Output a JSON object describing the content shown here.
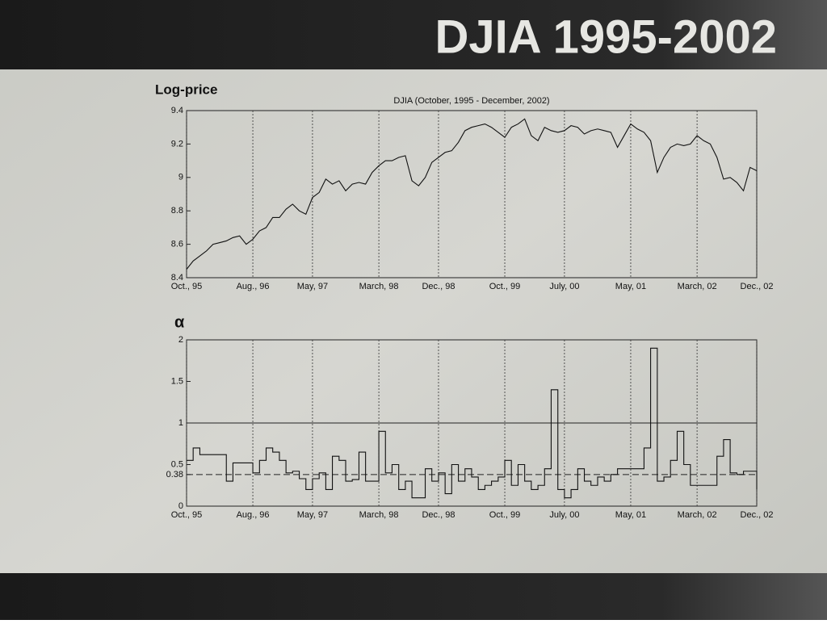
{
  "slide": {
    "title": "DJIA 1995-2002"
  },
  "chart_data": [
    {
      "type": "line",
      "title": "DJIA (October, 1995 - December, 2002)",
      "ylabel": "Log-price",
      "color": "#111111",
      "step": false,
      "xgrid": "dotted",
      "x": [
        1995.75,
        1995.833,
        1995.917,
        1996,
        1996.083,
        1996.167,
        1996.25,
        1996.333,
        1996.417,
        1996.5,
        1996.583,
        1996.667,
        1996.75,
        1996.833,
        1996.917,
        1997,
        1997.083,
        1997.167,
        1997.25,
        1997.333,
        1997.417,
        1997.5,
        1997.583,
        1997.667,
        1997.75,
        1997.833,
        1997.917,
        1998,
        1998.083,
        1998.167,
        1998.25,
        1998.333,
        1998.417,
        1998.5,
        1998.583,
        1998.667,
        1998.75,
        1998.833,
        1998.917,
        1999,
        1999.083,
        1999.167,
        1999.25,
        1999.333,
        1999.417,
        1999.5,
        1999.583,
        1999.667,
        1999.75,
        1999.833,
        1999.917,
        2000,
        2000.083,
        2000.167,
        2000.25,
        2000.333,
        2000.417,
        2000.5,
        2000.583,
        2000.667,
        2000.75,
        2000.833,
        2000.917,
        2001,
        2001.083,
        2001.167,
        2001.25,
        2001.333,
        2001.417,
        2001.5,
        2001.583,
        2001.667,
        2001.75,
        2001.833,
        2001.917,
        2002,
        2002.083,
        2002.167,
        2002.25,
        2002.333,
        2002.417,
        2002.5,
        2002.583,
        2002.667,
        2002.75,
        2002.833,
        2002.917
      ],
      "values": [
        8.45,
        8.5,
        8.53,
        8.56,
        8.6,
        8.61,
        8.62,
        8.64,
        8.65,
        8.6,
        8.63,
        8.68,
        8.7,
        8.76,
        8.76,
        8.81,
        8.84,
        8.8,
        8.78,
        8.88,
        8.91,
        8.99,
        8.96,
        8.98,
        8.92,
        8.96,
        8.97,
        8.96,
        9.03,
        9.07,
        9.1,
        9.1,
        9.12,
        9.13,
        8.98,
        8.95,
        9,
        9.09,
        9.12,
        9.15,
        9.16,
        9.21,
        9.28,
        9.3,
        9.31,
        9.32,
        9.3,
        9.27,
        9.24,
        9.3,
        9.32,
        9.35,
        9.25,
        9.22,
        9.3,
        9.28,
        9.27,
        9.28,
        9.31,
        9.3,
        9.26,
        9.28,
        9.29,
        9.28,
        9.27,
        9.18,
        9.25,
        9.32,
        9.29,
        9.27,
        9.22,
        9.03,
        9.12,
        9.18,
        9.2,
        9.19,
        9.2,
        9.25,
        9.22,
        9.2,
        9.12,
        8.99,
        9,
        8.97,
        8.92,
        9.06,
        9.04
      ],
      "xlim": [
        1995.75,
        2002.917
      ],
      "xticks": [
        {
          "value": 1995.75,
          "label": "Oct., 95"
        },
        {
          "value": 1996.583,
          "label": "Aug., 96"
        },
        {
          "value": 1997.333,
          "label": "May, 97"
        },
        {
          "value": 1998.167,
          "label": "March, 98"
        },
        {
          "value": 1998.917,
          "label": "Dec., 98"
        },
        {
          "value": 1999.75,
          "label": "Oct., 99"
        },
        {
          "value": 2000.5,
          "label": "July, 00"
        },
        {
          "value": 2001.333,
          "label": "May, 01"
        },
        {
          "value": 2002.167,
          "label": "March, 02"
        },
        {
          "value": 2002.917,
          "label": "Dec., 02"
        }
      ],
      "ylim": [
        8.4,
        9.4
      ],
      "yticks": [
        8.4,
        8.6,
        8.8,
        9,
        9.2,
        9.4
      ]
    },
    {
      "type": "line",
      "ylabel": "α",
      "color": "#111111",
      "step": true,
      "xgrid": "dotted",
      "x": [
        1995.75,
        1995.833,
        1995.917,
        1996,
        1996.083,
        1996.167,
        1996.25,
        1996.333,
        1996.417,
        1996.5,
        1996.583,
        1996.667,
        1996.75,
        1996.833,
        1996.917,
        1997,
        1997.083,
        1997.167,
        1997.25,
        1997.333,
        1997.417,
        1997.5,
        1997.583,
        1997.667,
        1997.75,
        1997.833,
        1997.917,
        1998,
        1998.083,
        1998.167,
        1998.25,
        1998.333,
        1998.417,
        1998.5,
        1998.583,
        1998.667,
        1998.75,
        1998.833,
        1998.917,
        1999,
        1999.083,
        1999.167,
        1999.25,
        1999.333,
        1999.417,
        1999.5,
        1999.583,
        1999.667,
        1999.75,
        1999.833,
        1999.917,
        2000,
        2000.083,
        2000.167,
        2000.25,
        2000.333,
        2000.417,
        2000.5,
        2000.583,
        2000.667,
        2000.75,
        2000.833,
        2000.917,
        2001,
        2001.083,
        2001.167,
        2001.25,
        2001.333,
        2001.417,
        2001.5,
        2001.583,
        2001.667,
        2001.75,
        2001.833,
        2001.917,
        2002,
        2002.083,
        2002.167,
        2002.25,
        2002.333,
        2002.417,
        2002.5,
        2002.583,
        2002.667,
        2002.75,
        2002.833,
        2002.917
      ],
      "values": [
        0.55,
        0.7,
        0.62,
        0.62,
        0.62,
        0.62,
        0.3,
        0.52,
        0.52,
        0.52,
        0.4,
        0.55,
        0.7,
        0.65,
        0.55,
        0.4,
        0.42,
        0.33,
        0.2,
        0.33,
        0.4,
        0.2,
        0.6,
        0.55,
        0.3,
        0.32,
        0.65,
        0.3,
        0.3,
        0.9,
        0.4,
        0.5,
        0.2,
        0.3,
        0.1,
        0.1,
        0.45,
        0.3,
        0.4,
        0.15,
        0.5,
        0.3,
        0.45,
        0.35,
        0.2,
        0.25,
        0.3,
        0.35,
        0.55,
        0.25,
        0.5,
        0.3,
        0.2,
        0.25,
        0.45,
        1.4,
        0.2,
        0.1,
        0.2,
        0.45,
        0.3,
        0.25,
        0.35,
        0.3,
        0.38,
        0.45,
        0.45,
        0.45,
        0.45,
        0.7,
        1.9,
        0.3,
        0.35,
        0.55,
        0.9,
        0.5,
        0.25,
        0.25,
        0.25,
        0.25,
        0.6,
        0.8,
        0.4,
        0.38,
        0.42,
        0.42,
        0.2
      ],
      "xlim": [
        1995.75,
        2002.917
      ],
      "xticks": [
        {
          "value": 1995.75,
          "label": "Oct., 95"
        },
        {
          "value": 1996.583,
          "label": "Aug., 96"
        },
        {
          "value": 1997.333,
          "label": "May, 97"
        },
        {
          "value": 1998.167,
          "label": "March, 98"
        },
        {
          "value": 1998.917,
          "label": "Dec., 98"
        },
        {
          "value": 1999.75,
          "label": "Oct., 99"
        },
        {
          "value": 2000.5,
          "label": "July, 00"
        },
        {
          "value": 2001.333,
          "label": "May, 01"
        },
        {
          "value": 2002.167,
          "label": "March, 02"
        },
        {
          "value": 2002.917,
          "label": "Dec., 02"
        }
      ],
      "ylim": [
        0,
        2
      ],
      "yticks": [
        0,
        0.38,
        0.5,
        1,
        1.5,
        2
      ],
      "hlines": [
        {
          "value": 1,
          "dashed": false
        },
        {
          "value": 0.38,
          "dashed": true
        }
      ]
    }
  ]
}
